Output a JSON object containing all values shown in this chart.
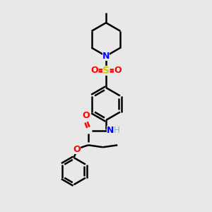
{
  "bg_color": "#e8e8e8",
  "bond_color": "#000000",
  "N_color": "#0000ff",
  "O_color": "#ff0000",
  "S_color": "#cccc00",
  "H_color": "#7fbbbb",
  "line_width": 1.8,
  "figsize": [
    3.0,
    3.0
  ],
  "dpi": 100,
  "xlim": [
    0,
    10
  ],
  "ylim": [
    0,
    10
  ]
}
